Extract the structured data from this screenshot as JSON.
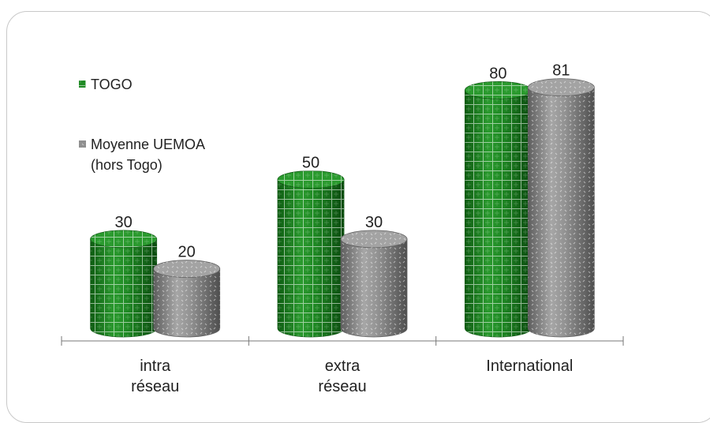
{
  "colors": {
    "togo": "#1f8a24",
    "togo_dark": "#0f5a13",
    "uemoa": "#8f8f8f",
    "uemoa_dark": "#5f5f5f",
    "axis": "#777777"
  },
  "chart_data": {
    "type": "bar",
    "categories": [
      [
        "intra",
        "réseau"
      ],
      [
        "extra",
        "réseau"
      ],
      [
        "International"
      ]
    ],
    "series": [
      {
        "name": "TOGO",
        "values": [
          30,
          50,
          80
        ]
      },
      {
        "name": [
          "Moyenne UEMOA",
          "(hors Togo)"
        ],
        "values": [
          20,
          30,
          81
        ]
      }
    ],
    "legend_position": "top-left",
    "grid": false
  }
}
